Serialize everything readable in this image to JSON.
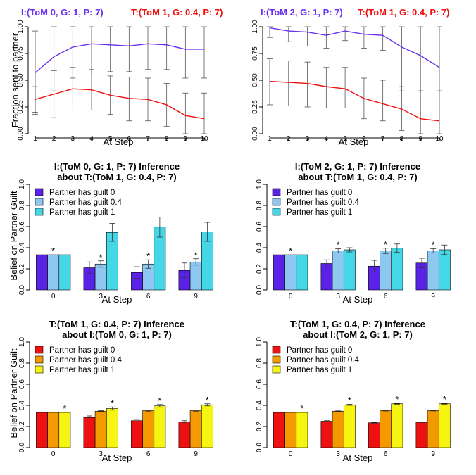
{
  "chart_data": [
    {
      "id": "line-left",
      "type": "line",
      "title_parts": [
        {
          "text": "I:(ToM 0, G: 1, P: 7)",
          "color": "#6a2ff0"
        },
        {
          "text": "T:(ToM 1, G: 0.4, P: 7)",
          "color": "#ee1111"
        }
      ],
      "xlabel": "At Step",
      "ylabel": "Fraction sent to partner",
      "x": [
        1,
        2,
        3,
        4,
        5,
        6,
        7,
        8,
        9,
        10
      ],
      "xlim": [
        1,
        10
      ],
      "ylim": [
        0,
        1
      ],
      "yticks": [
        "0.00",
        "0.25",
        "0.50",
        "0.75",
        "1.00"
      ],
      "series": [
        {
          "color": "#6a2ff0",
          "values": [
            0.57,
            0.72,
            0.81,
            0.84,
            0.83,
            0.82,
            0.84,
            0.83,
            0.79,
            0.79
          ],
          "low": [
            0.18,
            0.4,
            0.52,
            0.55,
            0.58,
            0.58,
            0.6,
            0.6,
            0.52,
            0.52
          ],
          "high": [
            0.96,
            1.0,
            1.0,
            1.0,
            1.0,
            1.0,
            1.0,
            1.0,
            1.0,
            1.0
          ]
        },
        {
          "color": "#ee1111",
          "values": [
            0.32,
            0.37,
            0.42,
            0.41,
            0.36,
            0.33,
            0.32,
            0.27,
            0.17,
            0.14
          ],
          "low": [
            0.2,
            0.15,
            0.22,
            0.22,
            0.18,
            0.12,
            0.12,
            0.07,
            0.0,
            0.0
          ],
          "high": [
            0.44,
            0.59,
            0.62,
            0.6,
            0.54,
            0.53,
            0.52,
            0.47,
            0.38,
            0.38
          ]
        }
      ]
    },
    {
      "id": "line-right",
      "type": "line",
      "title_parts": [
        {
          "text": "I:(ToM 2, G: 1, P: 7)",
          "color": "#6a2ff0"
        },
        {
          "text": "T:(ToM 1, G: 0.4, P: 7)",
          "color": "#ee1111"
        }
      ],
      "xlabel": "At Step",
      "ylabel": "",
      "x": [
        1,
        2,
        3,
        4,
        5,
        6,
        7,
        8,
        9,
        10
      ],
      "xlim": [
        1,
        10
      ],
      "ylim": [
        0,
        1
      ],
      "yticks": [
        "0.00",
        "0.25",
        "0.50",
        "0.75",
        "1.00"
      ],
      "series": [
        {
          "color": "#6a2ff0",
          "values": [
            0.99,
            0.96,
            0.95,
            0.92,
            0.96,
            0.93,
            0.92,
            0.81,
            0.73,
            0.62
          ],
          "low": [
            0.9,
            0.86,
            0.82,
            0.8,
            0.87,
            0.8,
            0.78,
            0.4,
            0.4,
            0.4
          ],
          "high": [
            1.0,
            1.0,
            1.0,
            1.0,
            1.0,
            1.0,
            1.0,
            1.0,
            1.0,
            1.0
          ]
        },
        {
          "color": "#ee1111",
          "values": [
            0.49,
            0.48,
            0.47,
            0.44,
            0.42,
            0.33,
            0.28,
            0.23,
            0.14,
            0.12
          ],
          "low": [
            0.27,
            0.26,
            0.25,
            0.24,
            0.24,
            0.14,
            0.12,
            0.03,
            0.0,
            0.0
          ],
          "high": [
            0.7,
            0.68,
            0.67,
            0.62,
            0.62,
            0.52,
            0.5,
            0.44,
            0.4,
            0.4
          ]
        }
      ]
    },
    {
      "id": "bar-mid-left",
      "type": "bar",
      "title": [
        "I:(ToM 0, G: 1, P: 7) Inference",
        "about T:(ToM 1, G: 0.4, P: 7)"
      ],
      "xlabel": "At Step",
      "ylabel": "Belief on Partner Guilt",
      "categories": [
        "0",
        "3",
        "6",
        "9"
      ],
      "ylim": [
        0,
        1
      ],
      "yticks": [
        "0.0",
        "0.2",
        "0.4",
        "0.6",
        "0.8",
        "1.0"
      ],
      "legend": [
        "Partner has guilt 0",
        "Partner has guilt 0.4",
        "Partner has guilt 1"
      ],
      "colors": [
        "#5a22e6",
        "#8ec8f0",
        "#44d8e6"
      ],
      "values": [
        [
          0.333,
          0.333,
          0.333
        ],
        [
          0.21,
          0.245,
          0.545
        ],
        [
          0.165,
          0.245,
          0.595
        ],
        [
          0.185,
          0.265,
          0.55
        ]
      ],
      "errors": [
        [
          0,
          0,
          0
        ],
        [
          0.055,
          0.03,
          0.085
        ],
        [
          0.055,
          0.04,
          0.095
        ],
        [
          0.07,
          0.03,
          0.09
        ]
      ],
      "stars": [
        1,
        1,
        1,
        1
      ]
    },
    {
      "id": "bar-mid-right",
      "type": "bar",
      "title": [
        "I:(ToM 2, G: 1, P: 7) Inference",
        "about T:(ToM 1, G: 0.4, P: 7)"
      ],
      "xlabel": "At Step",
      "ylabel": "",
      "categories": [
        "0",
        "3",
        "6",
        "9"
      ],
      "ylim": [
        0,
        1
      ],
      "yticks": [
        "0.0",
        "0.2",
        "0.4",
        "0.6",
        "0.8",
        "1.0"
      ],
      "legend": [
        "Partner has guilt 0",
        "Partner has guilt 0.4",
        "Partner has guilt 1"
      ],
      "colors": [
        "#5a22e6",
        "#8ec8f0",
        "#44d8e6"
      ],
      "values": [
        [
          0.333,
          0.333,
          0.333
        ],
        [
          0.25,
          0.37,
          0.38
        ],
        [
          0.225,
          0.37,
          0.395
        ],
        [
          0.255,
          0.37,
          0.38
        ]
      ],
      "errors": [
        [
          0,
          0,
          0
        ],
        [
          0.035,
          0.02,
          0.02
        ],
        [
          0.055,
          0.025,
          0.04
        ],
        [
          0.045,
          0.02,
          0.045
        ]
      ],
      "stars": [
        1,
        1,
        1,
        1
      ]
    },
    {
      "id": "bar-bot-left",
      "type": "bar",
      "title": [
        "T:(ToM 1, G: 0.4, P: 7) Inference",
        "about I:(ToM 0, G: 1, P: 7)"
      ],
      "xlabel": "At Step",
      "ylabel": "Belief on Partner Guilt",
      "categories": [
        "0",
        "3",
        "6",
        "9"
      ],
      "ylim": [
        0,
        1
      ],
      "yticks": [
        "0.0",
        "0.2",
        "0.4",
        "0.6",
        "0.8",
        "1.0"
      ],
      "legend": [
        "Partner has guilt 0",
        "Partner has guilt 0.4",
        "Partner has guilt 1"
      ],
      "colors": [
        "#ee1111",
        "#f29a00",
        "#f5f511"
      ],
      "values": [
        [
          0.333,
          0.333,
          0.333
        ],
        [
          0.285,
          0.345,
          0.37
        ],
        [
          0.255,
          0.35,
          0.395
        ],
        [
          0.245,
          0.35,
          0.405
        ]
      ],
      "errors": [
        [
          0,
          0,
          0
        ],
        [
          0.015,
          0.005,
          0.015
        ],
        [
          0.012,
          0.005,
          0.013
        ],
        [
          0.01,
          0.005,
          0.01
        ]
      ],
      "stars": [
        2,
        2,
        2,
        2
      ]
    },
    {
      "id": "bar-bot-right",
      "type": "bar",
      "title": [
        "T:(ToM 1, G: 0.4, P: 7) Inference",
        "about I:(ToM 2, G: 1, P: 7)"
      ],
      "xlabel": "At Step",
      "ylabel": "",
      "categories": [
        "0",
        "3",
        "6",
        "9"
      ],
      "ylim": [
        0,
        1
      ],
      "yticks": [
        "0.0",
        "0.2",
        "0.4",
        "0.6",
        "0.8",
        "1.0"
      ],
      "legend": [
        "Partner has guilt 0",
        "Partner has guilt 0.4",
        "Partner has guilt 1"
      ],
      "colors": [
        "#ee1111",
        "#f29a00",
        "#f5f511"
      ],
      "values": [
        [
          0.333,
          0.333,
          0.333
        ],
        [
          0.25,
          0.345,
          0.405
        ],
        [
          0.235,
          0.35,
          0.415
        ],
        [
          0.24,
          0.35,
          0.415
        ]
      ],
      "errors": [
        [
          0,
          0,
          0
        ],
        [
          0.005,
          0.003,
          0.005
        ],
        [
          0.004,
          0.003,
          0.004
        ],
        [
          0.004,
          0.003,
          0.004
        ]
      ],
      "stars": [
        2,
        2,
        2,
        2
      ]
    }
  ]
}
